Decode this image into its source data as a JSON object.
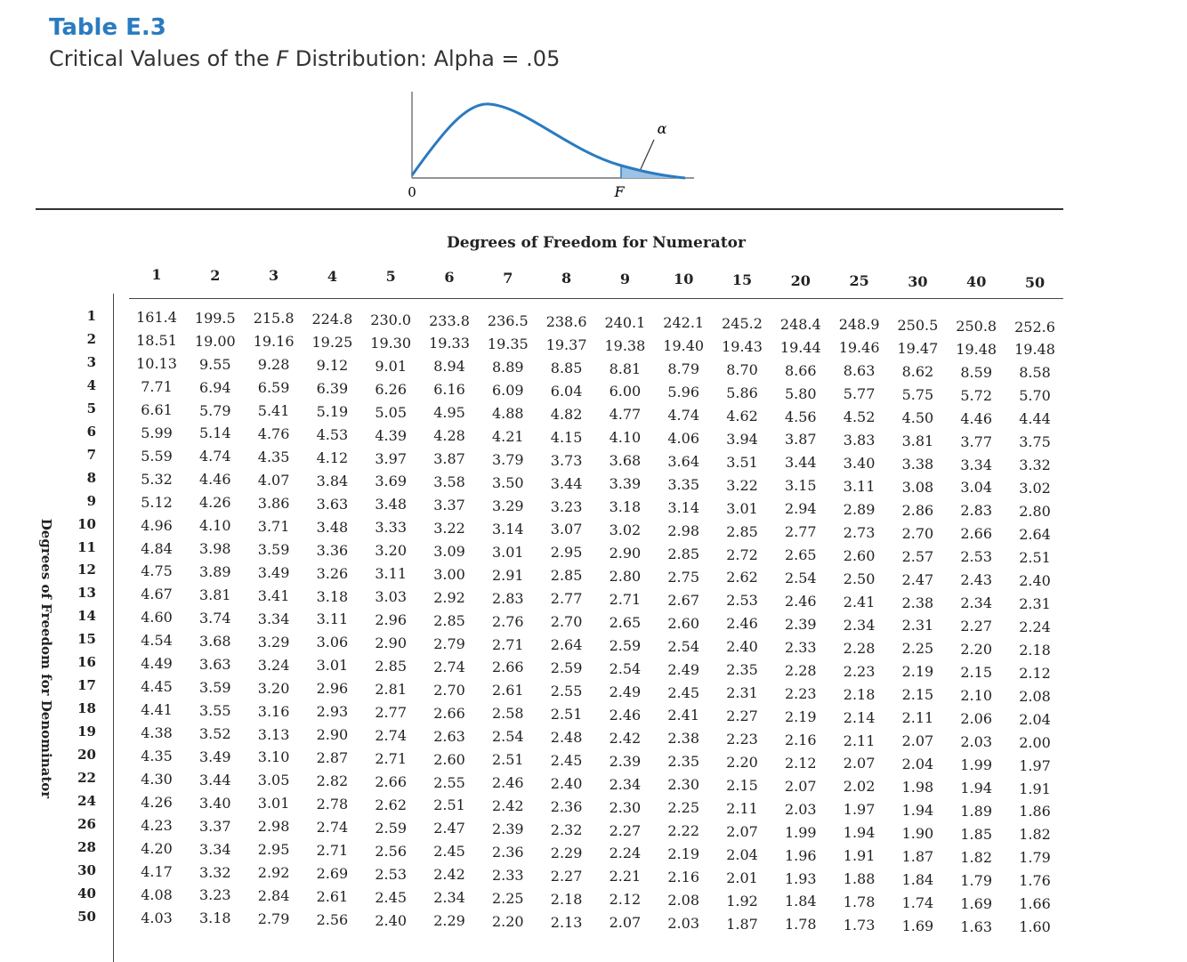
{
  "header": {
    "title": "Table E.3",
    "subtitle_prefix": "Critical Values of the ",
    "subtitle_italic": "F",
    "subtitle_suffix": " Distribution: Alpha = .05"
  },
  "figure": {
    "origin_label": "0",
    "f_label": "F",
    "alpha_label": "α"
  },
  "table": {
    "column_heading": "Degrees of Freedom for Numerator",
    "row_heading": "Degrees of Freedom for Denominator",
    "columns": [
      "1",
      "2",
      "3",
      "4",
      "5",
      "6",
      "7",
      "8",
      "9",
      "10",
      "15",
      "20",
      "25",
      "30",
      "40",
      "50"
    ],
    "rows": [
      {
        "label": "1",
        "values": [
          "161.4",
          "199.5",
          "215.8",
          "224.8",
          "230.0",
          "233.8",
          "236.5",
          "238.6",
          "240.1",
          "242.1",
          "245.2",
          "248.4",
          "248.9",
          "250.5",
          "250.8",
          "252.6"
        ]
      },
      {
        "label": "2",
        "values": [
          "18.51",
          "19.00",
          "19.16",
          "19.25",
          "19.30",
          "19.33",
          "19.35",
          "19.37",
          "19.38",
          "19.40",
          "19.43",
          "19.44",
          "19.46",
          "19.47",
          "19.48",
          "19.48"
        ]
      },
      {
        "label": "3",
        "values": [
          "10.13",
          "9.55",
          "9.28",
          "9.12",
          "9.01",
          "8.94",
          "8.89",
          "8.85",
          "8.81",
          "8.79",
          "8.70",
          "8.66",
          "8.63",
          "8.62",
          "8.59",
          "8.58"
        ]
      },
      {
        "label": "4",
        "values": [
          "7.71",
          "6.94",
          "6.59",
          "6.39",
          "6.26",
          "6.16",
          "6.09",
          "6.04",
          "6.00",
          "5.96",
          "5.86",
          "5.80",
          "5.77",
          "5.75",
          "5.72",
          "5.70"
        ]
      },
      {
        "label": "5",
        "values": [
          "6.61",
          "5.79",
          "5.41",
          "5.19",
          "5.05",
          "4.95",
          "4.88",
          "4.82",
          "4.77",
          "4.74",
          "4.62",
          "4.56",
          "4.52",
          "4.50",
          "4.46",
          "4.44"
        ]
      },
      {
        "label": "6",
        "values": [
          "5.99",
          "5.14",
          "4.76",
          "4.53",
          "4.39",
          "4.28",
          "4.21",
          "4.15",
          "4.10",
          "4.06",
          "3.94",
          "3.87",
          "3.83",
          "3.81",
          "3.77",
          "3.75"
        ]
      },
      {
        "label": "7",
        "values": [
          "5.59",
          "4.74",
          "4.35",
          "4.12",
          "3.97",
          "3.87",
          "3.79",
          "3.73",
          "3.68",
          "3.64",
          "3.51",
          "3.44",
          "3.40",
          "3.38",
          "3.34",
          "3.32"
        ]
      },
      {
        "label": "8",
        "values": [
          "5.32",
          "4.46",
          "4.07",
          "3.84",
          "3.69",
          "3.58",
          "3.50",
          "3.44",
          "3.39",
          "3.35",
          "3.22",
          "3.15",
          "3.11",
          "3.08",
          "3.04",
          "3.02"
        ]
      },
      {
        "label": "9",
        "values": [
          "5.12",
          "4.26",
          "3.86",
          "3.63",
          "3.48",
          "3.37",
          "3.29",
          "3.23",
          "3.18",
          "3.14",
          "3.01",
          "2.94",
          "2.89",
          "2.86",
          "2.83",
          "2.80"
        ]
      },
      {
        "label": "10",
        "values": [
          "4.96",
          "4.10",
          "3.71",
          "3.48",
          "3.33",
          "3.22",
          "3.14",
          "3.07",
          "3.02",
          "2.98",
          "2.85",
          "2.77",
          "2.73",
          "2.70",
          "2.66",
          "2.64"
        ]
      },
      {
        "label": "11",
        "values": [
          "4.84",
          "3.98",
          "3.59",
          "3.36",
          "3.20",
          "3.09",
          "3.01",
          "2.95",
          "2.90",
          "2.85",
          "2.72",
          "2.65",
          "2.60",
          "2.57",
          "2.53",
          "2.51"
        ]
      },
      {
        "label": "12",
        "values": [
          "4.75",
          "3.89",
          "3.49",
          "3.26",
          "3.11",
          "3.00",
          "2.91",
          "2.85",
          "2.80",
          "2.75",
          "2.62",
          "2.54",
          "2.50",
          "2.47",
          "2.43",
          "2.40"
        ]
      },
      {
        "label": "13",
        "values": [
          "4.67",
          "3.81",
          "3.41",
          "3.18",
          "3.03",
          "2.92",
          "2.83",
          "2.77",
          "2.71",
          "2.67",
          "2.53",
          "2.46",
          "2.41",
          "2.38",
          "2.34",
          "2.31"
        ]
      },
      {
        "label": "14",
        "values": [
          "4.60",
          "3.74",
          "3.34",
          "3.11",
          "2.96",
          "2.85",
          "2.76",
          "2.70",
          "2.65",
          "2.60",
          "2.46",
          "2.39",
          "2.34",
          "2.31",
          "2.27",
          "2.24"
        ]
      },
      {
        "label": "15",
        "values": [
          "4.54",
          "3.68",
          "3.29",
          "3.06",
          "2.90",
          "2.79",
          "2.71",
          "2.64",
          "2.59",
          "2.54",
          "2.40",
          "2.33",
          "2.28",
          "2.25",
          "2.20",
          "2.18"
        ]
      },
      {
        "label": "16",
        "values": [
          "4.49",
          "3.63",
          "3.24",
          "3.01",
          "2.85",
          "2.74",
          "2.66",
          "2.59",
          "2.54",
          "2.49",
          "2.35",
          "2.28",
          "2.23",
          "2.19",
          "2.15",
          "2.12"
        ]
      },
      {
        "label": "17",
        "values": [
          "4.45",
          "3.59",
          "3.20",
          "2.96",
          "2.81",
          "2.70",
          "2.61",
          "2.55",
          "2.49",
          "2.45",
          "2.31",
          "2.23",
          "2.18",
          "2.15",
          "2.10",
          "2.08"
        ]
      },
      {
        "label": "18",
        "values": [
          "4.41",
          "3.55",
          "3.16",
          "2.93",
          "2.77",
          "2.66",
          "2.58",
          "2.51",
          "2.46",
          "2.41",
          "2.27",
          "2.19",
          "2.14",
          "2.11",
          "2.06",
          "2.04"
        ]
      },
      {
        "label": "19",
        "values": [
          "4.38",
          "3.52",
          "3.13",
          "2.90",
          "2.74",
          "2.63",
          "2.54",
          "2.48",
          "2.42",
          "2.38",
          "2.23",
          "2.16",
          "2.11",
          "2.07",
          "2.03",
          "2.00"
        ]
      },
      {
        "label": "20",
        "values": [
          "4.35",
          "3.49",
          "3.10",
          "2.87",
          "2.71",
          "2.60",
          "2.51",
          "2.45",
          "2.39",
          "2.35",
          "2.20",
          "2.12",
          "2.07",
          "2.04",
          "1.99",
          "1.97"
        ]
      },
      {
        "label": "22",
        "values": [
          "4.30",
          "3.44",
          "3.05",
          "2.82",
          "2.66",
          "2.55",
          "2.46",
          "2.40",
          "2.34",
          "2.30",
          "2.15",
          "2.07",
          "2.02",
          "1.98",
          "1.94",
          "1.91"
        ]
      },
      {
        "label": "24",
        "values": [
          "4.26",
          "3.40",
          "3.01",
          "2.78",
          "2.62",
          "2.51",
          "2.42",
          "2.36",
          "2.30",
          "2.25",
          "2.11",
          "2.03",
          "1.97",
          "1.94",
          "1.89",
          "1.86"
        ]
      },
      {
        "label": "26",
        "values": [
          "4.23",
          "3.37",
          "2.98",
          "2.74",
          "2.59",
          "2.47",
          "2.39",
          "2.32",
          "2.27",
          "2.22",
          "2.07",
          "1.99",
          "1.94",
          "1.90",
          "1.85",
          "1.82"
        ]
      },
      {
        "label": "28",
        "values": [
          "4.20",
          "3.34",
          "2.95",
          "2.71",
          "2.56",
          "2.45",
          "2.36",
          "2.29",
          "2.24",
          "2.19",
          "2.04",
          "1.96",
          "1.91",
          "1.87",
          "1.82",
          "1.79"
        ]
      },
      {
        "label": "30",
        "values": [
          "4.17",
          "3.32",
          "2.92",
          "2.69",
          "2.53",
          "2.42",
          "2.33",
          "2.27",
          "2.21",
          "2.16",
          "2.01",
          "1.93",
          "1.88",
          "1.84",
          "1.79",
          "1.76"
        ]
      },
      {
        "label": "40",
        "values": [
          "4.08",
          "3.23",
          "2.84",
          "2.61",
          "2.45",
          "2.34",
          "2.25",
          "2.18",
          "2.12",
          "2.08",
          "1.92",
          "1.84",
          "1.78",
          "1.74",
          "1.69",
          "1.66"
        ]
      },
      {
        "label": "50",
        "values": [
          "4.03",
          "3.18",
          "2.79",
          "2.56",
          "2.40",
          "2.29",
          "2.20",
          "2.13",
          "2.07",
          "2.03",
          "1.87",
          "1.78",
          "1.73",
          "1.69",
          "1.63",
          "1.60"
        ]
      }
    ]
  }
}
